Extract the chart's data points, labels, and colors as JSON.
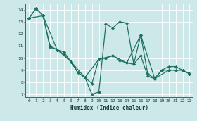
{
  "xlabel": "Humidex (Indice chaleur)",
  "xlim": [
    -0.5,
    23.5
  ],
  "ylim": [
    6.8,
    14.5
  ],
  "xticks": [
    0,
    1,
    2,
    3,
    4,
    5,
    6,
    7,
    8,
    9,
    10,
    11,
    12,
    13,
    14,
    15,
    16,
    17,
    18,
    19,
    20,
    21,
    22,
    23
  ],
  "yticks": [
    7,
    8,
    9,
    10,
    11,
    12,
    13,
    14
  ],
  "bg_color": "#cce8e8",
  "line_color": "#1e7060",
  "grid_color": "#ffffff",
  "series": [
    {
      "x": [
        0,
        1,
        2,
        3,
        4,
        5,
        6,
        7,
        8,
        9,
        10,
        11,
        12,
        13,
        14,
        15,
        16,
        17,
        18,
        19,
        20,
        21,
        22,
        23
      ],
      "y": [
        13.3,
        14.1,
        13.5,
        11.0,
        10.7,
        10.3,
        9.7,
        8.8,
        8.4,
        7.0,
        7.2,
        12.8,
        12.5,
        13.0,
        12.9,
        9.5,
        11.9,
        8.7,
        8.3,
        9.0,
        9.3,
        9.3,
        9.0,
        8.7
      ]
    },
    {
      "x": [
        0,
        1,
        2,
        3,
        4,
        5,
        6,
        7,
        8,
        9,
        10,
        11,
        12,
        13,
        14,
        15,
        16,
        17,
        18,
        19,
        20,
        21,
        22,
        23
      ],
      "y": [
        13.3,
        14.1,
        13.5,
        10.9,
        10.7,
        10.5,
        9.7,
        8.8,
        8.4,
        7.9,
        9.9,
        10.0,
        10.2,
        9.8,
        9.6,
        9.5,
        10.2,
        8.5,
        8.3,
        9.0,
        9.0,
        9.0,
        9.0,
        8.7
      ]
    },
    {
      "x": [
        0,
        2,
        4,
        6,
        8,
        10,
        12,
        14,
        16,
        18,
        20,
        22,
        23
      ],
      "y": [
        13.3,
        13.5,
        10.7,
        9.7,
        8.4,
        9.9,
        10.2,
        9.6,
        11.9,
        8.3,
        9.0,
        9.0,
        8.7
      ]
    }
  ]
}
